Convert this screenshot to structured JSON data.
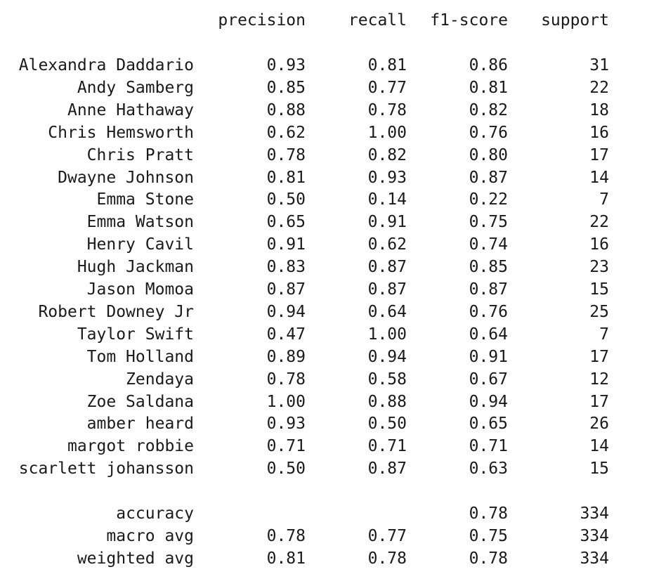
{
  "header": {
    "precision": "precision",
    "recall": "recall",
    "f1": "f1-score",
    "support": "support"
  },
  "rows": [
    {
      "label": "Alexandra Daddario",
      "precision": "0.93",
      "recall": "0.81",
      "f1": "0.86",
      "support": "31"
    },
    {
      "label": "Andy Samberg",
      "precision": "0.85",
      "recall": "0.77",
      "f1": "0.81",
      "support": "22"
    },
    {
      "label": "Anne Hathaway",
      "precision": "0.88",
      "recall": "0.78",
      "f1": "0.82",
      "support": "18"
    },
    {
      "label": "Chris Hemsworth",
      "precision": "0.62",
      "recall": "1.00",
      "f1": "0.76",
      "support": "16"
    },
    {
      "label": "Chris Pratt",
      "precision": "0.78",
      "recall": "0.82",
      "f1": "0.80",
      "support": "17"
    },
    {
      "label": "Dwayne Johnson",
      "precision": "0.81",
      "recall": "0.93",
      "f1": "0.87",
      "support": "14"
    },
    {
      "label": "Emma Stone",
      "precision": "0.50",
      "recall": "0.14",
      "f1": "0.22",
      "support": "7"
    },
    {
      "label": "Emma Watson",
      "precision": "0.65",
      "recall": "0.91",
      "f1": "0.75",
      "support": "22"
    },
    {
      "label": "Henry Cavil",
      "precision": "0.91",
      "recall": "0.62",
      "f1": "0.74",
      "support": "16"
    },
    {
      "label": "Hugh Jackman",
      "precision": "0.83",
      "recall": "0.87",
      "f1": "0.85",
      "support": "23"
    },
    {
      "label": "Jason Momoa",
      "precision": "0.87",
      "recall": "0.87",
      "f1": "0.87",
      "support": "15"
    },
    {
      "label": "Robert Downey Jr",
      "precision": "0.94",
      "recall": "0.64",
      "f1": "0.76",
      "support": "25"
    },
    {
      "label": "Taylor Swift",
      "precision": "0.47",
      "recall": "1.00",
      "f1": "0.64",
      "support": "7"
    },
    {
      "label": "Tom Holland",
      "precision": "0.89",
      "recall": "0.94",
      "f1": "0.91",
      "support": "17"
    },
    {
      "label": "Zendaya",
      "precision": "0.78",
      "recall": "0.58",
      "f1": "0.67",
      "support": "12"
    },
    {
      "label": "Zoe Saldana",
      "precision": "1.00",
      "recall": "0.88",
      "f1": "0.94",
      "support": "17"
    },
    {
      "label": "amber heard",
      "precision": "0.93",
      "recall": "0.50",
      "f1": "0.65",
      "support": "26"
    },
    {
      "label": "margot robbie",
      "precision": "0.71",
      "recall": "0.71",
      "f1": "0.71",
      "support": "14"
    },
    {
      "label": "scarlett johansson",
      "precision": "0.50",
      "recall": "0.87",
      "f1": "0.63",
      "support": "15"
    }
  ],
  "summary": [
    {
      "label": "accuracy",
      "precision": "",
      "recall": "",
      "f1": "0.78",
      "support": "334"
    },
    {
      "label": "macro avg",
      "precision": "0.78",
      "recall": "0.77",
      "f1": "0.75",
      "support": "334"
    },
    {
      "label": "weighted avg",
      "precision": "0.81",
      "recall": "0.78",
      "f1": "0.78",
      "support": "334"
    }
  ]
}
